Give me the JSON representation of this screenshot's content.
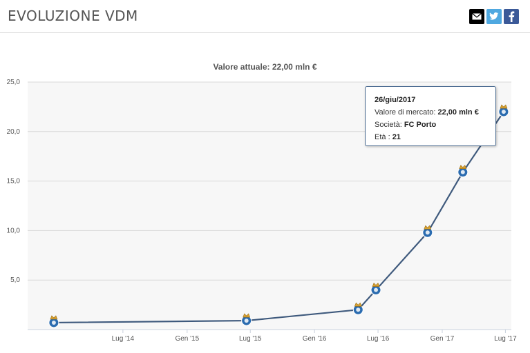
{
  "header": {
    "title": "EVOLUZIONE VDM"
  },
  "share": {
    "mail": "mail-icon",
    "twitter": "twitter-icon",
    "facebook": "facebook-icon"
  },
  "chart_data": {
    "type": "line",
    "title": "Valore attuale: 22,00 mln €",
    "xlabel": "",
    "ylabel": "",
    "ylim": [
      0,
      25
    ],
    "yticks": [
      "5,0",
      "10,0",
      "15,0",
      "20,0",
      "25,0"
    ],
    "xticks": [
      "Lug '14",
      "Gen '15",
      "Lug '15",
      "Gen '16",
      "Lug '16",
      "Gen '17",
      "Lug '17"
    ],
    "grid": true,
    "series": [
      {
        "values": [
          {
            "x": "2013-12-15",
            "y": 0.7
          },
          {
            "x": "2015-06-20",
            "y": 0.9
          },
          {
            "x": "2016-05-05",
            "y": 2.0
          },
          {
            "x": "2016-06-25",
            "y": 4.0
          },
          {
            "x": "2016-11-20",
            "y": 9.8
          },
          {
            "x": "2017-03-01",
            "y": 15.9
          },
          {
            "x": "2017-06-26",
            "y": 22.0
          }
        ]
      }
    ],
    "tooltip": {
      "date": "26/giu/2017",
      "value_label": "Valore di mercato:",
      "value": "22,00 mln €",
      "club_label": "Società:",
      "club": "FC Porto",
      "age_label": "Età :",
      "age": "21"
    }
  }
}
